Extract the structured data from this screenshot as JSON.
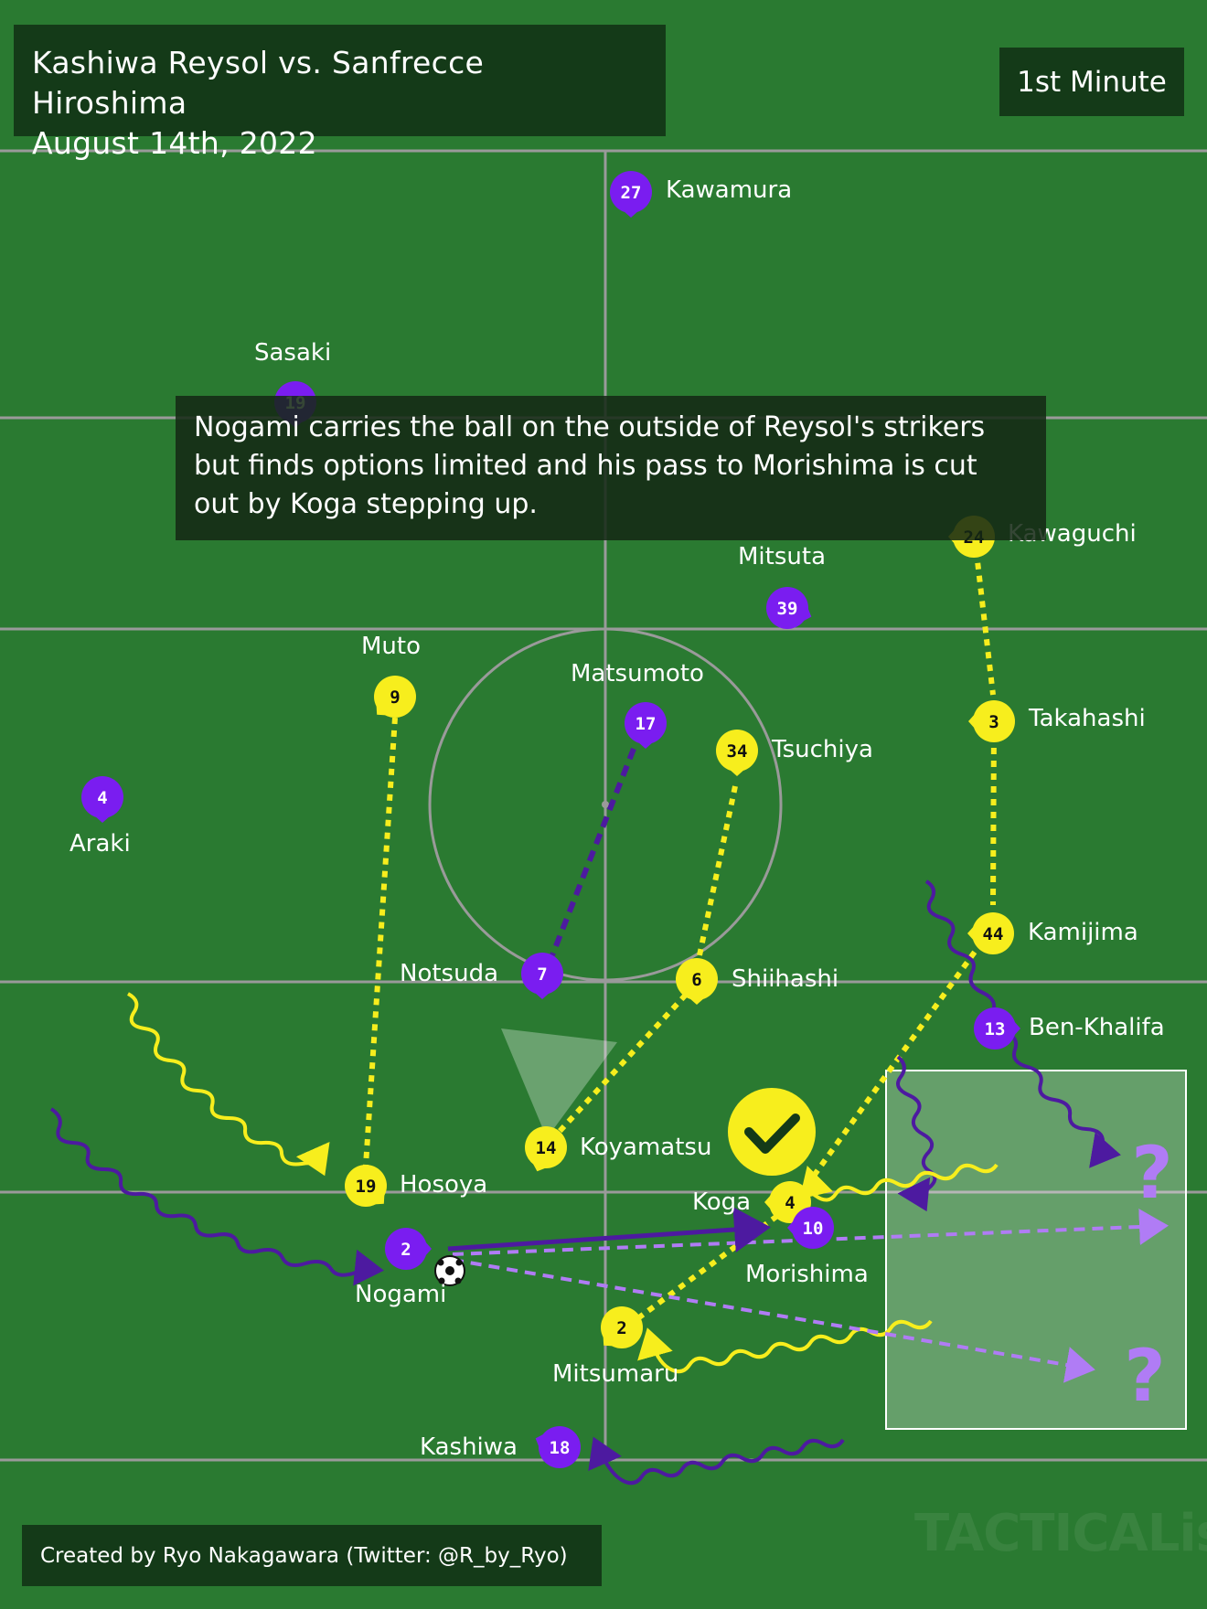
{
  "header": {
    "title_line1": "Kashiwa Reysol vs. Sanfrecce Hiroshima",
    "title_line2": "August 14th, 2022",
    "minute": "1st Minute"
  },
  "description": "Nogami carries the ball on the outside of Reysol's strikers but finds options limited and his pass to Morishima is cut out by Koga stepping up.",
  "credit": "Created by Ryo Nakagawara (Twitter: @R_by_Ryo)",
  "watermark": "TACTICALista",
  "colors": {
    "pitch": "#2a7a31",
    "reysol": "#f7ee1d",
    "sanfrecce": "#7a1df0",
    "sanfrecce_dark": "#4d1aa0",
    "pass_option": "#b07cf5"
  },
  "players": {
    "kawamura": {
      "name": "Kawamura",
      "number": "27"
    },
    "sasaki": {
      "name": "Sasaki",
      "number": "19"
    },
    "kawaguchi": {
      "name": "Kawaguchi",
      "number": "24"
    },
    "mitsuta": {
      "name": "Mitsuta",
      "number": "39"
    },
    "muto": {
      "name": "Muto",
      "number": "9"
    },
    "matsumoto": {
      "name": "Matsumoto",
      "number": "17"
    },
    "tsuchiya": {
      "name": "Tsuchiya",
      "number": "34"
    },
    "takahashi": {
      "name": "Takahashi",
      "number": "3"
    },
    "araki": {
      "name": "Araki",
      "number": "4"
    },
    "notsuda": {
      "name": "Notsuda",
      "number": "7"
    },
    "shiihashi": {
      "name": "Shiihashi",
      "number": "6"
    },
    "kamijima": {
      "name": "Kamijima",
      "number": "44"
    },
    "ben_khalifa": {
      "name": "Ben-Khalifa",
      "number": "13"
    },
    "koyamatsu": {
      "name": "Koyamatsu",
      "number": "14"
    },
    "hosoya": {
      "name": "Hosoya",
      "number": "19"
    },
    "koga": {
      "name": "Koga",
      "number": "4"
    },
    "morishima": {
      "name": "Morishima",
      "number": "10"
    },
    "nogami": {
      "name": "Nogami",
      "number": "2"
    },
    "mitsumaru": {
      "name": "Mitsumaru",
      "number": "2"
    },
    "kashiwa": {
      "name": "Kashiwa",
      "number": "18"
    }
  },
  "question_mark": "?"
}
